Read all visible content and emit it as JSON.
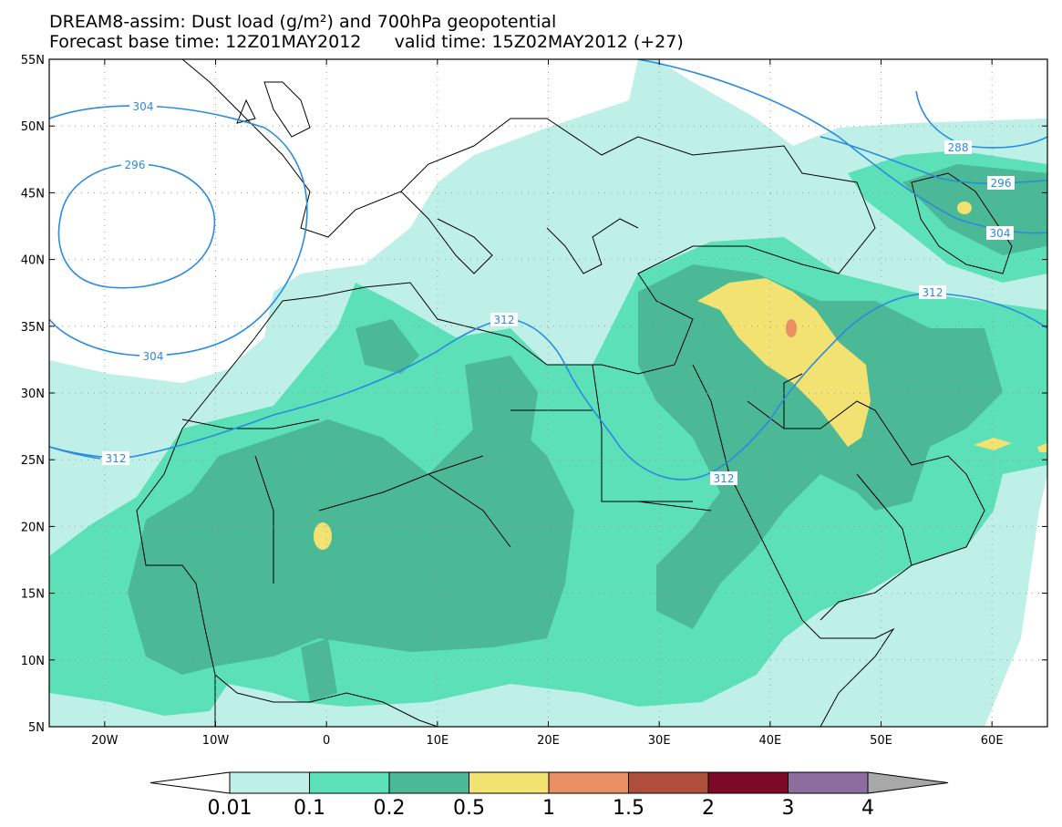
{
  "title": {
    "line1": "DREAM8-assim: Dust load (g/m²) and 700hPa geopotential",
    "base_time": "Forecast base time: 12Z01MAY2012",
    "valid_time": "valid time: 15Z02MAY2012 (+27)"
  },
  "axes": {
    "lon": {
      "min": -25,
      "max": 65,
      "ticks": [
        -20,
        -10,
        0,
        10,
        20,
        30,
        40,
        50,
        60
      ],
      "labels": [
        "20W",
        "10W",
        "0",
        "10E",
        "20E",
        "30E",
        "40E",
        "50E",
        "60E"
      ]
    },
    "lat": {
      "min": 5,
      "max": 55,
      "ticks": [
        5,
        10,
        15,
        20,
        25,
        30,
        35,
        40,
        45,
        50,
        55
      ],
      "labels": [
        "5N",
        "10N",
        "15N",
        "20N",
        "25N",
        "30N",
        "35N",
        "40N",
        "45N",
        "50N",
        "55N"
      ]
    }
  },
  "colorbar": {
    "levels": [
      "0.01",
      "0.1",
      "0.2",
      "0.5",
      "1",
      "1.5",
      "2",
      "3",
      "4"
    ],
    "colors": [
      "#ffffff",
      "#bff0e8",
      "#5ce0b8",
      "#4bb896",
      "#f2e272",
      "#ea8e64",
      "#b04e3c",
      "#7e0828",
      "#8e6ca0",
      "#a8a8a8"
    ]
  },
  "contour_labels": [
    "304",
    "296",
    "304",
    "312",
    "312",
    "312",
    "288",
    "296",
    "304",
    "312"
  ],
  "colors": {
    "contour": "#2a8be0",
    "coast": "#000000",
    "ocean": "#ffffff"
  }
}
